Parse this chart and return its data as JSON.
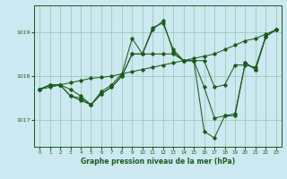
{
  "title": "Graphe pression niveau de la mer (hPa)",
  "bg_color": "#cce8f0",
  "plot_bg_color": "#cce8f0",
  "line_color": "#1a5c1a",
  "grid_color": "#99ccbb",
  "xlim": [
    -0.5,
    23.5
  ],
  "ylim": [
    1016.4,
    1019.6
  ],
  "yticks": [
    1017,
    1018,
    1019
  ],
  "xticks": [
    0,
    1,
    2,
    3,
    4,
    5,
    6,
    7,
    8,
    9,
    10,
    11,
    12,
    13,
    14,
    15,
    16,
    17,
    18,
    19,
    20,
    21,
    22,
    23
  ],
  "series": [
    {
      "x": [
        0,
        1,
        2,
        3,
        4,
        5,
        6,
        7,
        8,
        9,
        10,
        11,
        12,
        13,
        14,
        15,
        16,
        17,
        18,
        19,
        20,
        21,
        22,
        23
      ],
      "y": [
        1017.7,
        1017.75,
        1017.8,
        1017.85,
        1017.9,
        1017.95,
        1017.97,
        1018.0,
        1018.05,
        1018.1,
        1018.15,
        1018.2,
        1018.25,
        1018.3,
        1018.35,
        1018.4,
        1018.45,
        1018.5,
        1018.6,
        1018.7,
        1018.8,
        1018.85,
        1018.95,
        1019.05
      ]
    },
    {
      "x": [
        0,
        1,
        2,
        3,
        4,
        5,
        6,
        7,
        8,
        9,
        10,
        11,
        12,
        13,
        14,
        15,
        16,
        17,
        18,
        19,
        20,
        21,
        22,
        23
      ],
      "y": [
        1017.7,
        1017.8,
        1017.8,
        1017.55,
        1017.5,
        1017.35,
        1017.6,
        1017.75,
        1018.0,
        1018.5,
        1018.5,
        1019.05,
        1019.25,
        1018.55,
        1018.35,
        1018.35,
        1016.75,
        1016.6,
        1017.1,
        1017.15,
        1018.3,
        1018.15,
        1018.9,
        1019.05
      ]
    },
    {
      "x": [
        0,
        1,
        2,
        3,
        4,
        5,
        6,
        7,
        8,
        9,
        10,
        11,
        12,
        13,
        14,
        15,
        16,
        17,
        18,
        19,
        20,
        21,
        22,
        23
      ],
      "y": [
        1017.7,
        1017.8,
        1017.8,
        1017.7,
        1017.55,
        1017.35,
        1017.65,
        1017.8,
        1018.05,
        1018.85,
        1018.5,
        1019.1,
        1019.2,
        1018.6,
        1018.35,
        1018.35,
        1018.35,
        1017.75,
        1017.8,
        1018.25,
        1018.25,
        1018.2,
        1018.9,
        1019.05
      ]
    },
    {
      "x": [
        0,
        1,
        2,
        3,
        4,
        5,
        6,
        7,
        8,
        9,
        10,
        11,
        12,
        13,
        14,
        15,
        16,
        17,
        18,
        19,
        20,
        21,
        22,
        23
      ],
      "y": [
        1017.7,
        1017.8,
        1017.8,
        1017.55,
        1017.45,
        1017.35,
        1017.6,
        1017.75,
        1018.0,
        1018.5,
        1018.5,
        1018.5,
        1018.5,
        1018.5,
        1018.35,
        1018.35,
        1017.75,
        1017.05,
        1017.1,
        1017.1,
        1018.3,
        1018.15,
        1018.9,
        1019.05
      ]
    }
  ]
}
